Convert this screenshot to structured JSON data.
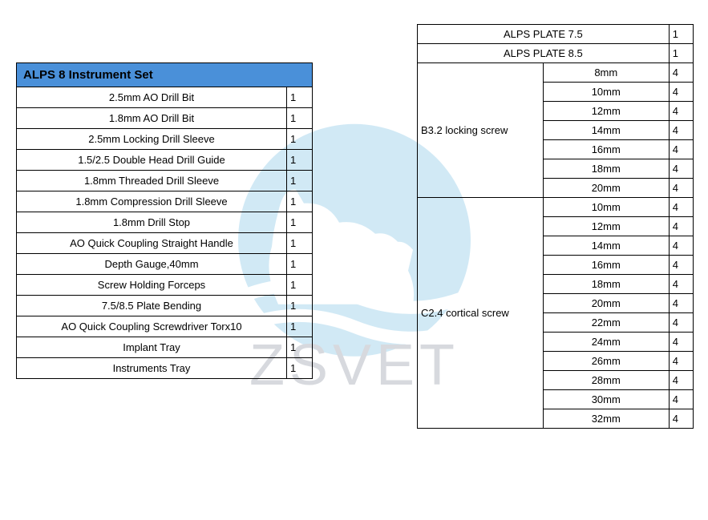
{
  "watermark": {
    "text": "ZSVET",
    "circle_color": "#8fcae7",
    "text_color": "#9ca3af"
  },
  "left": {
    "title": "ALPS 8 Instrument Set",
    "header_bg": "#4a90d9",
    "rows": [
      {
        "name": "2.5mm AO Drill Bit",
        "qty": "1"
      },
      {
        "name": "1.8mm AO Drill Bit",
        "qty": "1"
      },
      {
        "name": "2.5mm Locking Drill Sleeve",
        "qty": "1"
      },
      {
        "name": "1.5/2.5 Double Head Drill Guide",
        "qty": "1"
      },
      {
        "name": "1.8mm Threaded Drill Sleeve",
        "qty": "1"
      },
      {
        "name": "1.8mm Compression Drill Sleeve",
        "qty": "1"
      },
      {
        "name": "1.8mm Drill Stop",
        "qty": "1"
      },
      {
        "name": "AO Quick Coupling Straight Handle",
        "qty": "1"
      },
      {
        "name": "Depth Gauge,40mm",
        "qty": "1"
      },
      {
        "name": "Screw Holding Forceps",
        "qty": "1"
      },
      {
        "name": "7.5/8.5 Plate Bending",
        "qty": "1"
      },
      {
        "name": "AO Quick Coupling Screwdriver Torx10",
        "qty": "1"
      },
      {
        "name": "Implant Tray",
        "qty": "1"
      },
      {
        "name": "Instruments Tray",
        "qty": "1"
      }
    ]
  },
  "right": {
    "plates": [
      {
        "name": "ALPS PLATE 7.5",
        "qty": "1"
      },
      {
        "name": "ALPS PLATE 8.5",
        "qty": "1"
      }
    ],
    "groups": [
      {
        "label": "B3.2 locking screw",
        "sizes": [
          {
            "size": "8mm",
            "qty": "4"
          },
          {
            "size": "10mm",
            "qty": "4"
          },
          {
            "size": "12mm",
            "qty": "4"
          },
          {
            "size": "14mm",
            "qty": "4"
          },
          {
            "size": "16mm",
            "qty": "4"
          },
          {
            "size": "18mm",
            "qty": "4"
          },
          {
            "size": "20mm",
            "qty": "4"
          }
        ]
      },
      {
        "label": "C2.4 cortical screw",
        "sizes": [
          {
            "size": "10mm",
            "qty": "4"
          },
          {
            "size": "12mm",
            "qty": "4"
          },
          {
            "size": "14mm",
            "qty": "4"
          },
          {
            "size": "16mm",
            "qty": "4"
          },
          {
            "size": "18mm",
            "qty": "4"
          },
          {
            "size": "20mm",
            "qty": "4"
          },
          {
            "size": "22mm",
            "qty": "4"
          },
          {
            "size": "24mm",
            "qty": "4"
          },
          {
            "size": "26mm",
            "qty": "4"
          },
          {
            "size": "28mm",
            "qty": "4"
          },
          {
            "size": "30mm",
            "qty": "4"
          },
          {
            "size": "32mm",
            "qty": "4"
          }
        ]
      }
    ]
  }
}
